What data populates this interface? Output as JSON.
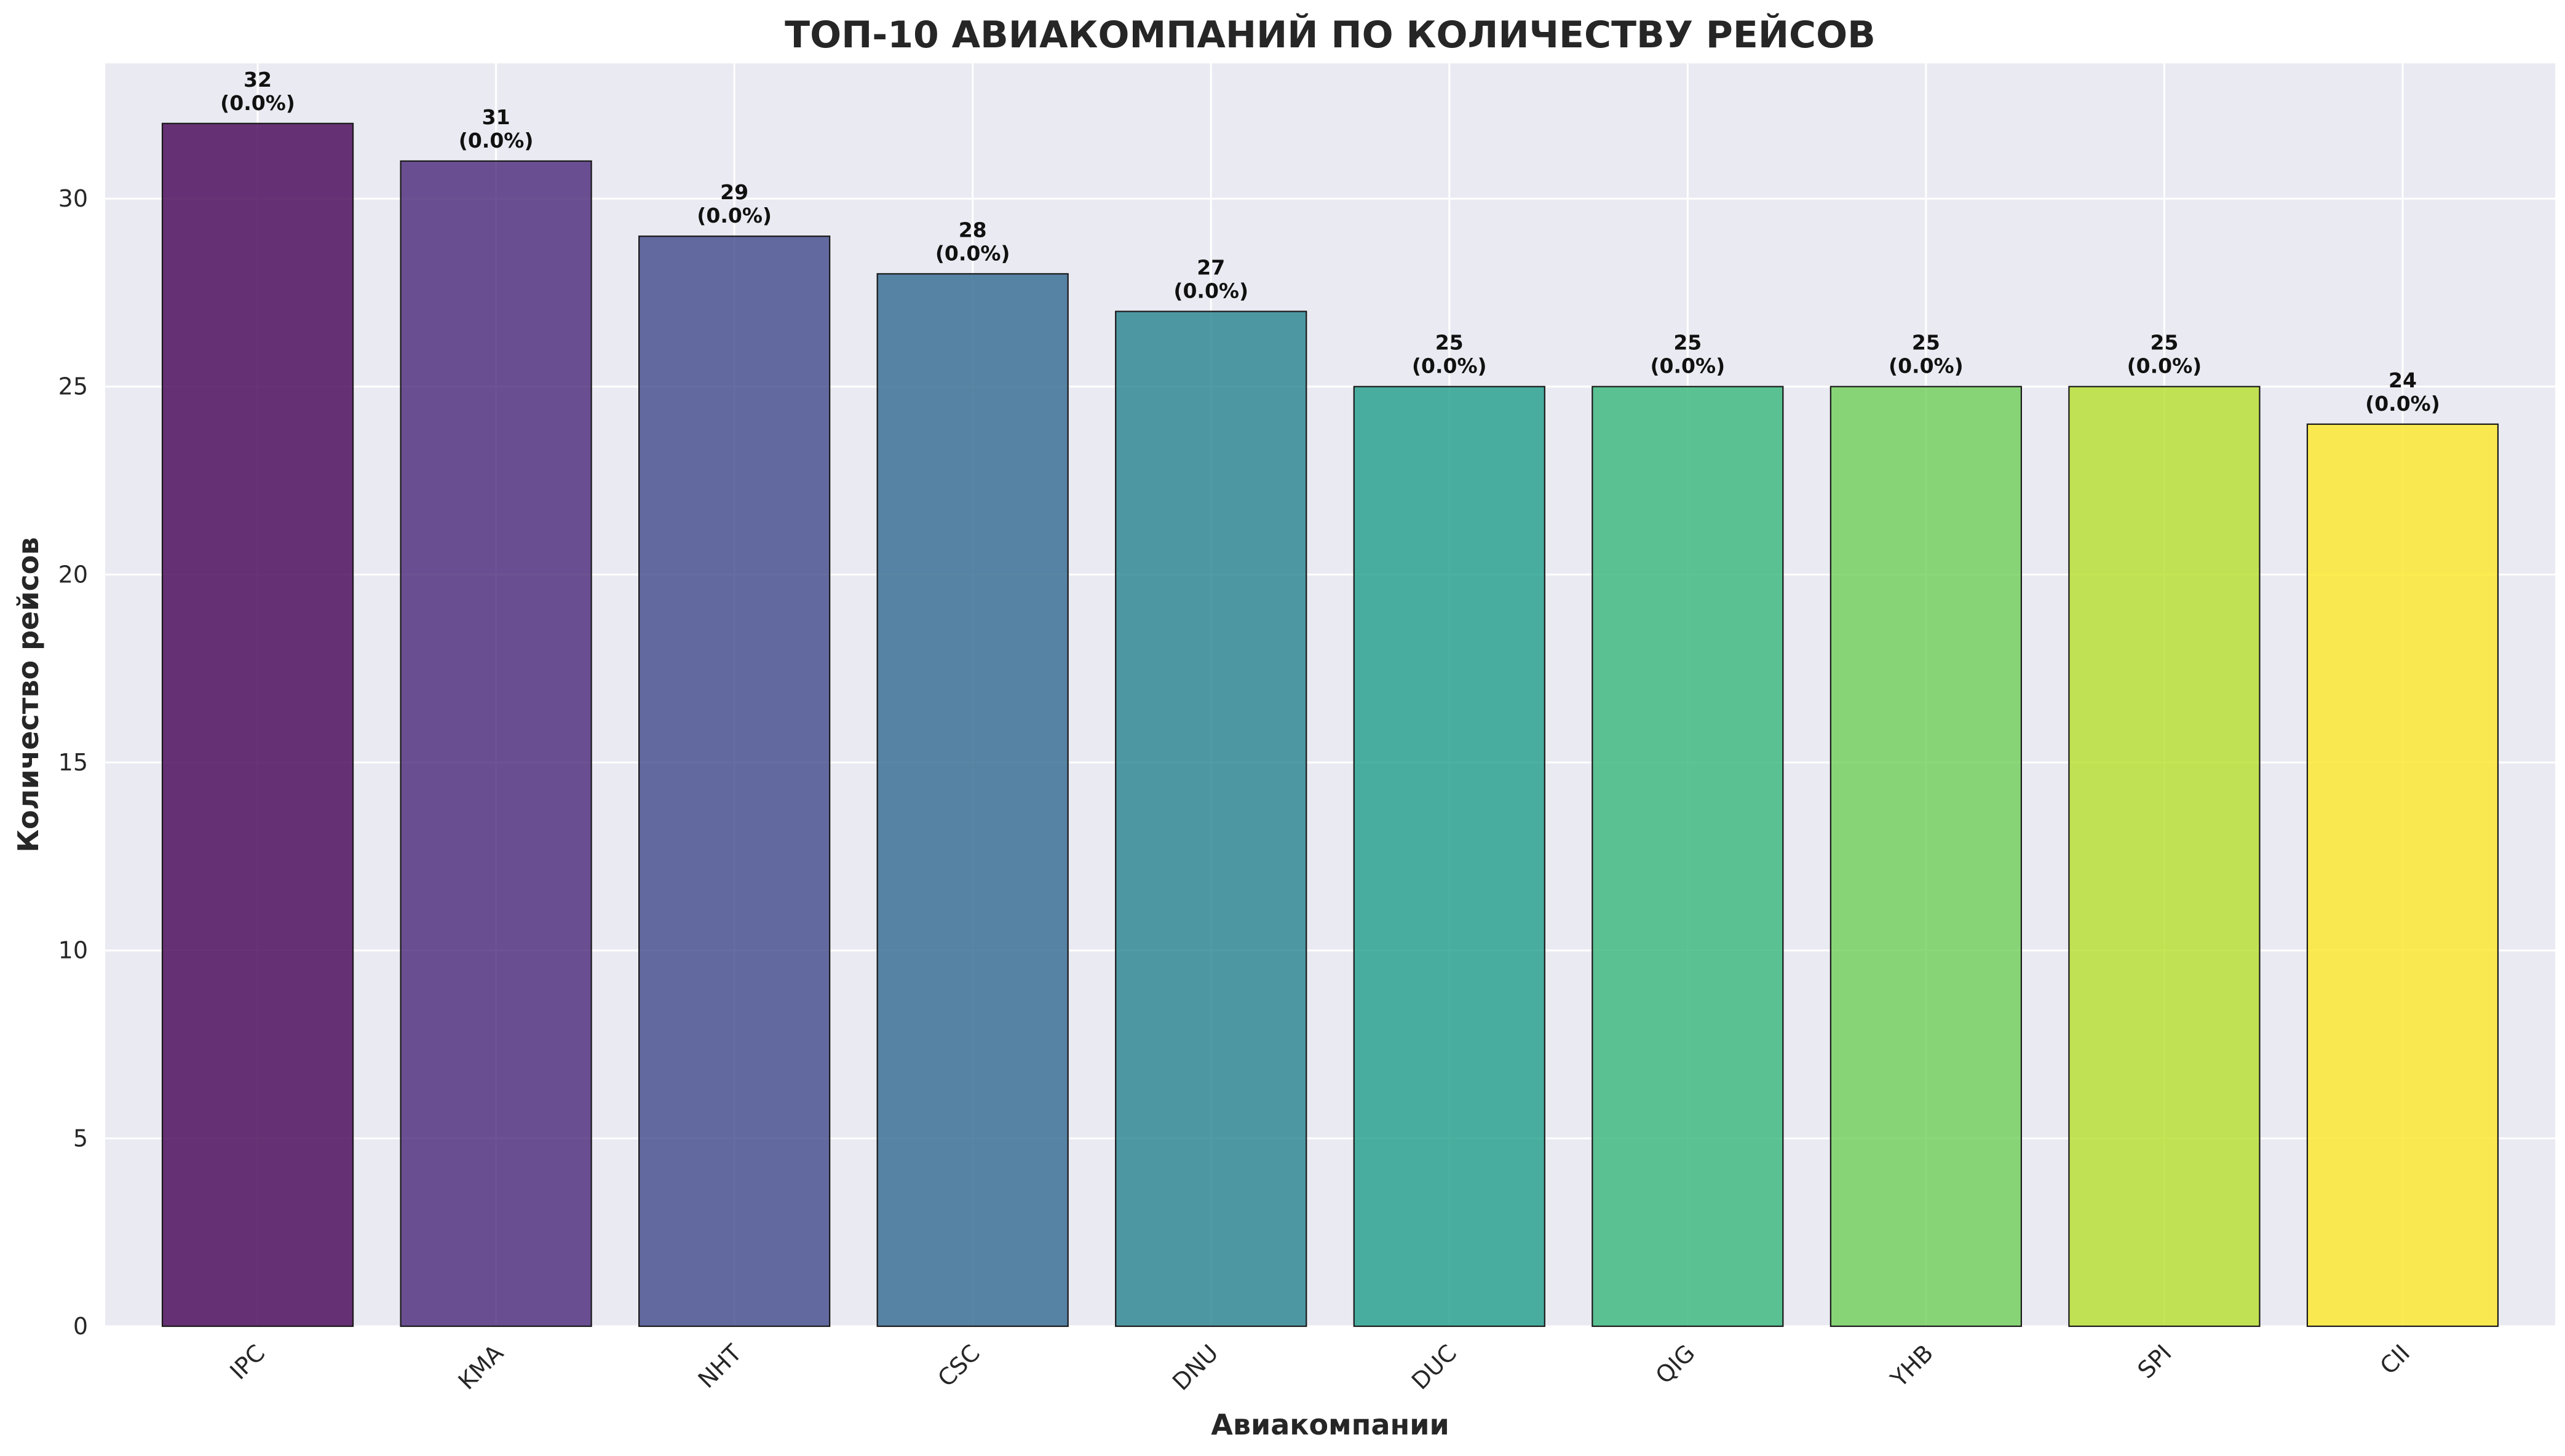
{
  "chart_data": {
    "type": "bar",
    "title": "ТОП-10 АВИАКОМПАНИЙ ПО КОЛИЧЕСТВУ РЕЙСОВ",
    "xlabel": "Авиакомпании",
    "ylabel": "Количество рейсов",
    "categories": [
      "IPC",
      "KMA",
      "NHT",
      "CSC",
      "DNU",
      "DUC",
      "QIG",
      "YHB",
      "SPI",
      "CII"
    ],
    "values": [
      32,
      31,
      29,
      28,
      27,
      25,
      25,
      25,
      25,
      24
    ],
    "value_labels": [
      "32",
      "31",
      "29",
      "28",
      "27",
      "25",
      "25",
      "25",
      "25",
      "24"
    ],
    "percent_labels": [
      "(0.0%)",
      "(0.0%)",
      "(0.0%)",
      "(0.0%)",
      "(0.0%)",
      "(0.0%)",
      "(0.0%)",
      "(0.0%)",
      "(0.0%)",
      "(0.0%)"
    ],
    "ylim": [
      0,
      33.6
    ],
    "yticks": [
      0,
      5,
      10,
      15,
      20,
      25,
      30
    ],
    "grid": true,
    "colormap": "viridis",
    "colors": [
      "#440154",
      "#482878",
      "#3e4989",
      "#31688e",
      "#26828e",
      "#1f9e89",
      "#35b779",
      "#6ece58",
      "#b5de2b",
      "#fde725"
    ],
    "background": "#eaeaf2"
  }
}
